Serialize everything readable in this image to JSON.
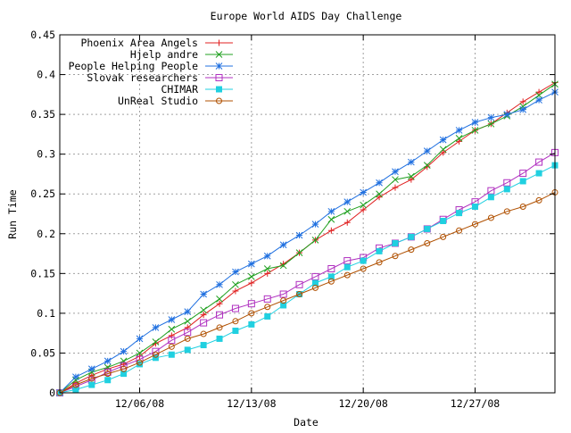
{
  "chart_data": {
    "type": "line",
    "title": "Europe World AIDS Day Challenge",
    "xlabel": "Date",
    "ylabel": "Run Time",
    "xlim": [
      "2008-12-01",
      "2009-01-01"
    ],
    "ylim": [
      0,
      0.45
    ],
    "x_ticks": [
      {
        "date": "2008-12-06",
        "label": "12/06/08"
      },
      {
        "date": "2008-12-13",
        "label": "12/13/08"
      },
      {
        "date": "2008-12-20",
        "label": "12/20/08"
      },
      {
        "date": "2008-12-27",
        "label": "12/27/08"
      }
    ],
    "y_ticks": [
      {
        "value": 0,
        "label": "0"
      },
      {
        "value": 0.05,
        "label": "0.05"
      },
      {
        "value": 0.1,
        "label": "0.1"
      },
      {
        "value": 0.15,
        "label": "0.15"
      },
      {
        "value": 0.2,
        "label": "0.2"
      },
      {
        "value": 0.25,
        "label": "0.25"
      },
      {
        "value": 0.3,
        "label": "0.3"
      },
      {
        "value": 0.35,
        "label": "0.35"
      },
      {
        "value": 0.4,
        "label": "0.4"
      },
      {
        "value": 0.45,
        "label": "0.45"
      }
    ],
    "grid": true,
    "legend_position": "top-left",
    "x": [
      "2008-12-01",
      "2008-12-02",
      "2008-12-03",
      "2008-12-04",
      "2008-12-05",
      "2008-12-06",
      "2008-12-07",
      "2008-12-08",
      "2008-12-09",
      "2008-12-10",
      "2008-12-11",
      "2008-12-12",
      "2008-12-13",
      "2008-12-14",
      "2008-12-15",
      "2008-12-16",
      "2008-12-17",
      "2008-12-18",
      "2008-12-19",
      "2008-12-20",
      "2008-12-21",
      "2008-12-22",
      "2008-12-23",
      "2008-12-24",
      "2008-12-25",
      "2008-12-26",
      "2008-12-27",
      "2008-12-28",
      "2008-12-29",
      "2008-12-30",
      "2008-12-31",
      "2009-01-01"
    ],
    "series": [
      {
        "name": "Phoenix Area Angels",
        "color": "#e02020",
        "marker": "plus",
        "values": [
          0,
          0.012,
          0.022,
          0.03,
          0.036,
          0.046,
          0.062,
          0.072,
          0.082,
          0.098,
          0.112,
          0.128,
          0.138,
          0.15,
          0.162,
          0.176,
          0.192,
          0.204,
          0.214,
          0.23,
          0.246,
          0.258,
          0.268,
          0.284,
          0.302,
          0.316,
          0.33,
          0.338,
          0.352,
          0.366,
          0.378,
          0.39
        ]
      },
      {
        "name": "Hjelp andre",
        "color": "#20a020",
        "marker": "x",
        "values": [
          0,
          0.016,
          0.026,
          0.032,
          0.04,
          0.05,
          0.064,
          0.08,
          0.09,
          0.104,
          0.118,
          0.136,
          0.146,
          0.156,
          0.16,
          0.176,
          0.192,
          0.218,
          0.228,
          0.236,
          0.25,
          0.268,
          0.272,
          0.286,
          0.306,
          0.32,
          0.33,
          0.338,
          0.348,
          0.36,
          0.374,
          0.388
        ]
      },
      {
        "name": "People Helping People",
        "color": "#2070e0",
        "marker": "star",
        "values": [
          0,
          0.02,
          0.03,
          0.04,
          0.052,
          0.068,
          0.082,
          0.092,
          0.102,
          0.124,
          0.136,
          0.152,
          0.162,
          0.172,
          0.186,
          0.198,
          0.212,
          0.228,
          0.24,
          0.252,
          0.264,
          0.278,
          0.29,
          0.304,
          0.318,
          0.33,
          0.34,
          0.346,
          0.35,
          0.356,
          0.368,
          0.378
        ]
      },
      {
        "name": "Slovak researchers",
        "color": "#b030c0",
        "marker": "open-square",
        "values": [
          0,
          0.008,
          0.016,
          0.026,
          0.034,
          0.042,
          0.052,
          0.066,
          0.076,
          0.088,
          0.098,
          0.106,
          0.112,
          0.118,
          0.124,
          0.136,
          0.146,
          0.156,
          0.166,
          0.17,
          0.182,
          0.188,
          0.196,
          0.206,
          0.218,
          0.23,
          0.24,
          0.254,
          0.264,
          0.276,
          0.29,
          0.302
        ]
      },
      {
        "name": "CHIMAR",
        "color": "#20d0e0",
        "marker": "filled-square",
        "values": [
          0,
          0.004,
          0.01,
          0.016,
          0.024,
          0.036,
          0.044,
          0.048,
          0.054,
          0.06,
          0.068,
          0.078,
          0.086,
          0.096,
          0.11,
          0.124,
          0.138,
          0.146,
          0.158,
          0.166,
          0.178,
          0.188,
          0.196,
          0.206,
          0.216,
          0.226,
          0.234,
          0.246,
          0.256,
          0.266,
          0.276,
          0.286
        ]
      },
      {
        "name": "UnReal Studio",
        "color": "#b05000",
        "marker": "open-circle",
        "values": [
          0,
          0.01,
          0.018,
          0.024,
          0.03,
          0.038,
          0.048,
          0.058,
          0.068,
          0.074,
          0.082,
          0.09,
          0.1,
          0.108,
          0.116,
          0.124,
          0.132,
          0.14,
          0.148,
          0.156,
          0.164,
          0.172,
          0.18,
          0.188,
          0.196,
          0.204,
          0.212,
          0.22,
          0.228,
          0.234,
          0.242,
          0.252
        ]
      }
    ]
  }
}
